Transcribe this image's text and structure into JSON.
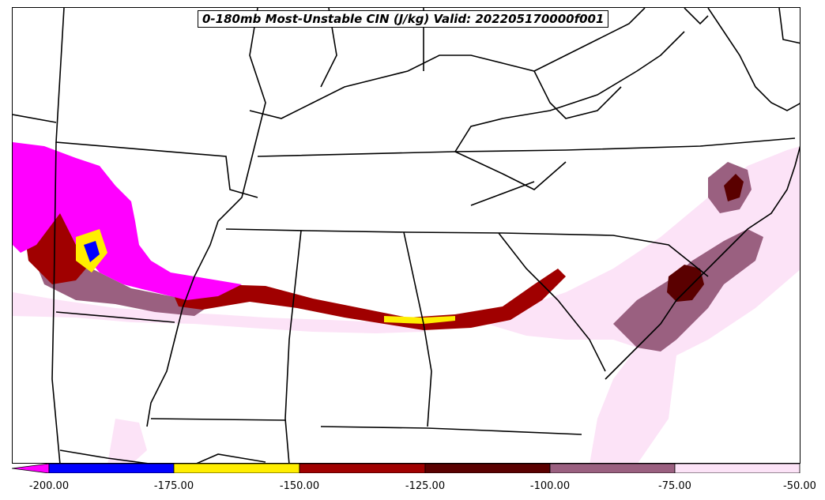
{
  "title": "0-180mb Most-Unstable CIN (J/kg) Valid: 202205170000f001",
  "colorbar": {
    "ticks": [
      "-200.00",
      "-175.00",
      "-150.00",
      "-125.00",
      "-100.00",
      "-75.00",
      "-50.00"
    ],
    "bins": [
      {
        "range": "< -200",
        "color": "#ff00ff"
      },
      {
        "range": "-200 to -175",
        "color": "#0000ff"
      },
      {
        "range": "-175 to -150",
        "color": "#ffee00"
      },
      {
        "range": "-150 to -125",
        "color": "#a00000"
      },
      {
        "range": "-125 to -100",
        "color": "#5a0000"
      },
      {
        "range": "-100 to -75",
        "color": "#9a6080"
      },
      {
        "range": "-75 to -50",
        "color": "#fce3f7"
      }
    ]
  }
}
